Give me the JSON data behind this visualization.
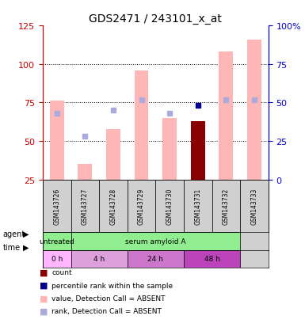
{
  "title": "GDS2471 / 243101_x_at",
  "samples": [
    "GSM143726",
    "GSM143727",
    "GSM143728",
    "GSM143729",
    "GSM143730",
    "GSM143731",
    "GSM143732",
    "GSM143733"
  ],
  "value_bars": [
    76,
    35,
    58,
    96,
    65,
    63,
    108,
    116
  ],
  "value_absent": [
    true,
    true,
    true,
    true,
    true,
    false,
    true,
    true
  ],
  "rank_dots": [
    68,
    53,
    70,
    77,
    68,
    73,
    77,
    77
  ],
  "rank_absent": [
    true,
    true,
    true,
    true,
    true,
    false,
    true,
    true
  ],
  "ylim_left": [
    25,
    125
  ],
  "ylim_right": [
    0,
    100
  ],
  "yticks_left": [
    25,
    50,
    75,
    100,
    125
  ],
  "yticks_right": [
    0,
    25,
    50,
    75,
    100
  ],
  "ytick_labels_right": [
    "0",
    "25",
    "50",
    "75",
    "100%"
  ],
  "color_bar_absent": "#FFB6B6",
  "color_bar_present": "#8B0000",
  "color_dot_absent": "#AAAADD",
  "color_dot_present": "#00008B",
  "color_left_axis": "#CC0000",
  "color_right_axis": "#0000CC",
  "agent_labels": [
    {
      "text": "untreated",
      "start": 0,
      "end": 1,
      "color": "#90EE90"
    },
    {
      "text": "serum amyloid A",
      "start": 1,
      "end": 7,
      "color": "#90EE90"
    }
  ],
  "time_labels": [
    {
      "text": "0 h",
      "start": 0,
      "end": 1,
      "color": "#FFB6FF"
    },
    {
      "text": "4 h",
      "start": 1,
      "end": 3,
      "color": "#DDA0DD"
    },
    {
      "text": "24 h",
      "start": 3,
      "end": 5,
      "color": "#CC77CC"
    },
    {
      "text": "48 h",
      "start": 5,
      "end": 7,
      "color": "#BB44BB"
    }
  ],
  "legend_items": [
    {
      "label": "count",
      "color": "#8B0000",
      "marker": "s"
    },
    {
      "label": "percentile rank within the sample",
      "color": "#00008B",
      "marker": "s"
    },
    {
      "label": "value, Detection Call = ABSENT",
      "color": "#FFB6B6",
      "marker": "s"
    },
    {
      "label": "rank, Detection Call = ABSENT",
      "color": "#AAAADD",
      "marker": "s"
    }
  ],
  "grid_lines": [
    50,
    75,
    100
  ],
  "background_color": "#FFFFFF",
  "plot_bg_color": "#FFFFFF",
  "bar_width": 0.5
}
